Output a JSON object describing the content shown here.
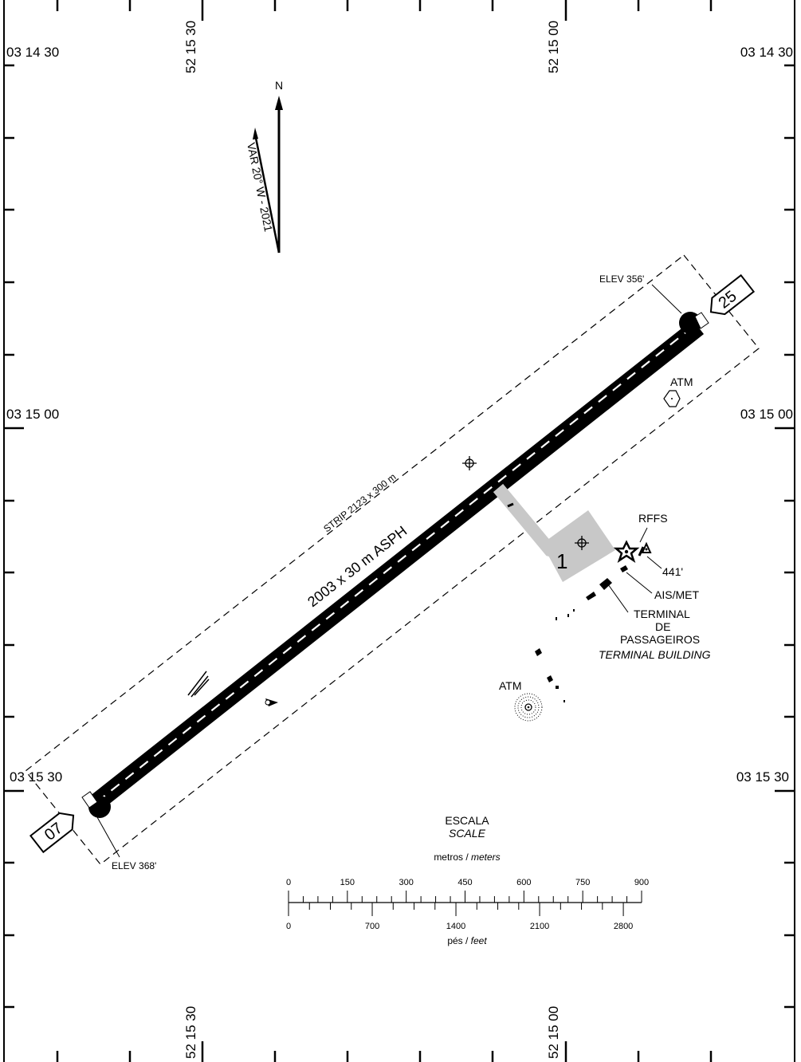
{
  "coordinates": {
    "top_left_lat": "03 14 30",
    "top_right_lat": "03 14 30",
    "mid_left_lat": "03 15 00",
    "mid_right_lat": "03 15 00",
    "lower_left_lat": "03 15 30",
    "lower_right_lat": "03 15 30",
    "lon_west": "52 15 30",
    "lon_east": "52 15 00"
  },
  "north": {
    "label": "N",
    "variation": "VAR 20° W - 2021"
  },
  "runway": {
    "dimensions": "2003 x 30 m ASPH",
    "strip": "STRIP 2123 x 300 m",
    "threshold_low": "07",
    "threshold_high": "25",
    "elev_low": "ELEV 368'",
    "elev_high": "ELEV 356'"
  },
  "apron": {
    "number": "1"
  },
  "facilities": {
    "atm_upper": "ATM",
    "atm_lower": "ATM",
    "rffs": "RFFS",
    "obstacle_height": "441'",
    "ais_met": "AIS/MET",
    "terminal_line1": "TERMINAL",
    "terminal_line2": "DE",
    "terminal_line3": "PASSAGEIROS",
    "terminal_en": "TERMINAL BUILDING"
  },
  "scale": {
    "title": "ESCALA",
    "title_en": "SCALE",
    "meters_label": "metros / ",
    "meters_label_en": "meters",
    "feet_label": "pés / ",
    "feet_label_en": "feet",
    "meter_ticks": [
      "0",
      "150",
      "300",
      "450",
      "600",
      "750",
      "900"
    ],
    "feet_ticks": [
      "0",
      "700",
      "1400",
      "2100",
      "2800"
    ]
  }
}
